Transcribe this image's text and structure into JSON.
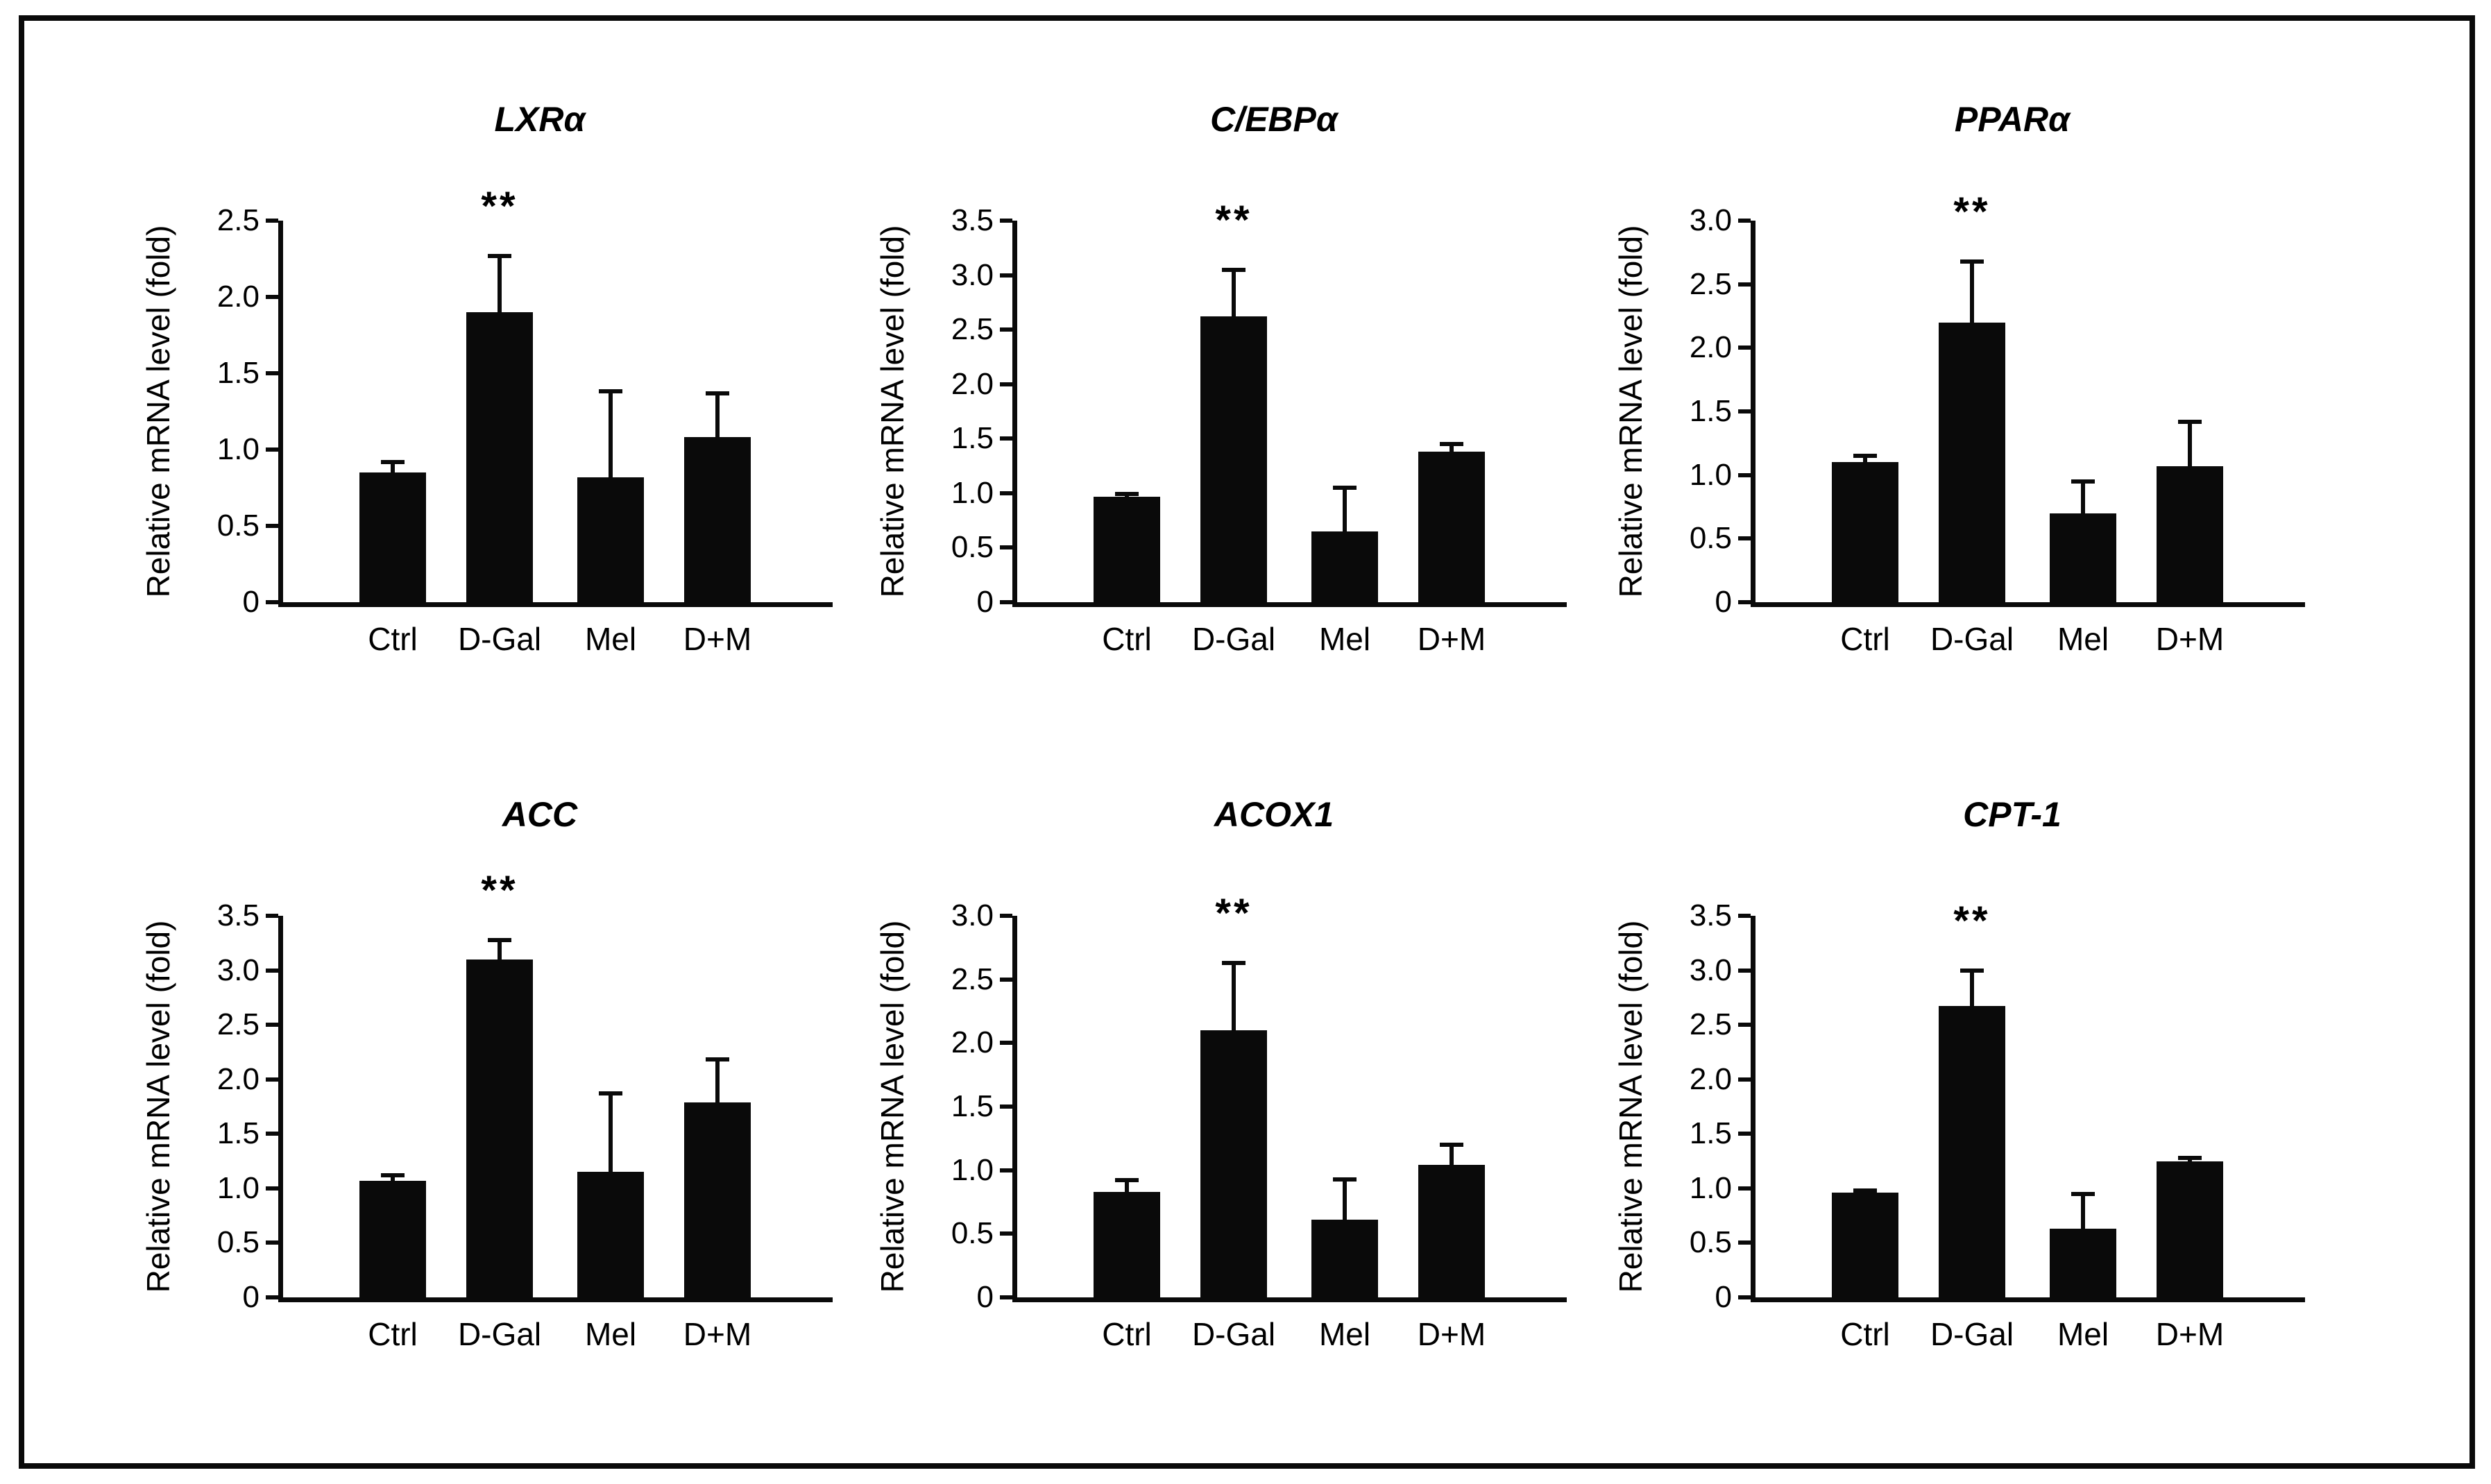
{
  "figure": {
    "background_color": "#ffffff",
    "frame_color": "#0a0a0a",
    "bar_color": "#0a0a0a",
    "significance_symbol": "**"
  },
  "chart_data": [
    {
      "type": "bar",
      "title": "LXRα",
      "xlabel": "",
      "ylabel": "Relative mRNA level (fold)",
      "categories": [
        "Ctrl",
        "D-Gal",
        "Mel",
        "D+M"
      ],
      "values": [
        0.85,
        1.9,
        0.82,
        1.08
      ],
      "errors_upper": [
        0.07,
        0.37,
        0.56,
        0.29
      ],
      "significance": [
        "",
        "**",
        "",
        ""
      ],
      "ylim": [
        0,
        2.5
      ],
      "ytick_step": 0.5,
      "yticks": [
        "0",
        "0.5",
        "1.0",
        "1.5",
        "2.0",
        "2.5"
      ],
      "bar_color": "#0a0a0a",
      "grid": false,
      "legend": "none"
    },
    {
      "type": "bar",
      "title": "C/EBPα",
      "xlabel": "",
      "ylabel": "Relative mRNA level (fold)",
      "categories": [
        "Ctrl",
        "D-Gal",
        "Mel",
        "D+M"
      ],
      "values": [
        0.97,
        2.62,
        0.65,
        1.38
      ],
      "errors_upper": [
        0.02,
        0.43,
        0.4,
        0.07
      ],
      "significance": [
        "",
        "**",
        "",
        ""
      ],
      "ylim": [
        0,
        3.5
      ],
      "ytick_step": 0.5,
      "yticks": [
        "0",
        "0.5",
        "1.0",
        "1.5",
        "2.0",
        "2.5",
        "3.0",
        "3.5"
      ],
      "bar_color": "#0a0a0a",
      "grid": false,
      "legend": "none"
    },
    {
      "type": "bar",
      "title": "PPARα",
      "xlabel": "",
      "ylabel": "Relative mRNA level (fold)",
      "categories": [
        "Ctrl",
        "D-Gal",
        "Mel",
        "D+M"
      ],
      "values": [
        1.1,
        2.2,
        0.7,
        1.07
      ],
      "errors_upper": [
        0.05,
        0.48,
        0.25,
        0.35
      ],
      "significance": [
        "",
        "**",
        "",
        ""
      ],
      "ylim": [
        0,
        3.0
      ],
      "ytick_step": 0.5,
      "yticks": [
        "0",
        "0.5",
        "1.0",
        "1.5",
        "2.0",
        "2.5",
        "3.0"
      ],
      "bar_color": "#0a0a0a",
      "grid": false,
      "legend": "none"
    },
    {
      "type": "bar",
      "title": "ACC",
      "xlabel": "",
      "ylabel": "Relative mRNA level (fold)",
      "categories": [
        "Ctrl",
        "D-Gal",
        "Mel",
        "D+M"
      ],
      "values": [
        1.07,
        3.1,
        1.15,
        1.79
      ],
      "errors_upper": [
        0.05,
        0.18,
        0.72,
        0.39
      ],
      "significance": [
        "",
        "**",
        "",
        ""
      ],
      "ylim": [
        0,
        3.5
      ],
      "ytick_step": 0.5,
      "yticks": [
        "0",
        "0.5",
        "1.0",
        "1.5",
        "2.0",
        "2.5",
        "3.0",
        "3.5"
      ],
      "bar_color": "#0a0a0a",
      "grid": false,
      "legend": "none"
    },
    {
      "type": "bar",
      "title": "ACOX1",
      "xlabel": "",
      "ylabel": "Relative mRNA level (fold)",
      "categories": [
        "Ctrl",
        "D-Gal",
        "Mel",
        "D+M"
      ],
      "values": [
        0.83,
        2.1,
        0.61,
        1.04
      ],
      "errors_upper": [
        0.09,
        0.53,
        0.32,
        0.16
      ],
      "significance": [
        "",
        "**",
        "",
        ""
      ],
      "ylim": [
        0,
        3.0
      ],
      "ytick_step": 0.5,
      "yticks": [
        "0",
        "0.5",
        "1.0",
        "1.5",
        "2.0",
        "2.5",
        "3.0"
      ],
      "bar_color": "#0a0a0a",
      "grid": false,
      "legend": "none"
    },
    {
      "type": "bar",
      "title": "CPT-1",
      "xlabel": "",
      "ylabel": "Relative mRNA level (fold)",
      "categories": [
        "Ctrl",
        "D-Gal",
        "Mel",
        "D+M"
      ],
      "values": [
        0.96,
        2.67,
        0.63,
        1.25
      ],
      "errors_upper": [
        0.02,
        0.33,
        0.32,
        0.03
      ],
      "significance": [
        "",
        "**",
        "",
        ""
      ],
      "ylim": [
        0,
        3.5
      ],
      "ytick_step": 0.5,
      "yticks": [
        "0",
        "0.5",
        "1.0",
        "1.5",
        "2.0",
        "2.5",
        "3.0",
        "3.5"
      ],
      "bar_color": "#0a0a0a",
      "grid": false,
      "legend": "none"
    }
  ]
}
